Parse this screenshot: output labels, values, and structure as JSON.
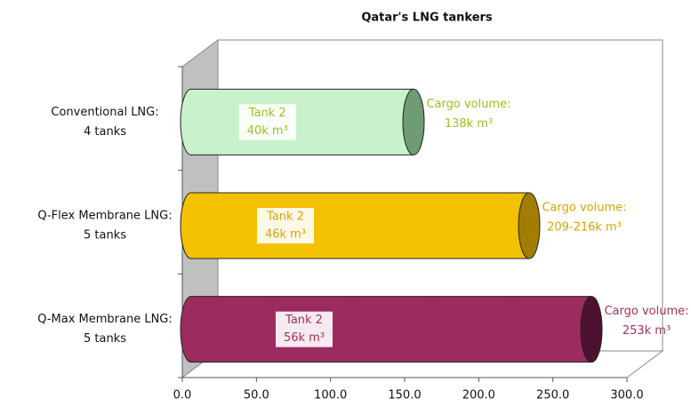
{
  "chart_data": {
    "type": "cylinder-bar",
    "title": "Qatar's LNG tankers",
    "categories": [
      "Conventional LNG:",
      "Q-Flex Membrane LNG:",
      "Q-Max Membrane LNG:"
    ],
    "category_sublabels": [
      "4 tanks",
      "5 tanks",
      "5 tanks"
    ],
    "bars": [
      {
        "segments": [
          37.5,
          37.5,
          37.5,
          37.5
        ],
        "color": "#c9f2cc",
        "end_color": "#6f9c72",
        "label_color": "#99c21a",
        "tank_label": [
          "Tank 2",
          "40k m³"
        ],
        "total_label": [
          "Cargo volume:",
          "138k m³"
        ]
      },
      {
        "segments": [
          45.6,
          45.6,
          45.6,
          45.6,
          45.6
        ],
        "color": "#f2c200",
        "end_color": "#a37d00",
        "label_color": "#d9a400",
        "tank_label": [
          "Tank 2",
          "46k m³"
        ],
        "total_label": [
          "Cargo volume:",
          "209-216k m³"
        ]
      },
      {
        "segments": [
          54,
          54,
          54,
          54,
          54
        ],
        "color": "#9c2c60",
        "end_color": "#4c1230",
        "label_color": "#a3305c",
        "tank_label": [
          "Tank 2",
          "56k m³"
        ],
        "total_label": [
          "Cargo volume:",
          "253k m³"
        ]
      }
    ],
    "xlim": [
      0,
      300
    ],
    "xticks": [
      {
        "value": 0,
        "label": "0.0"
      },
      {
        "value": 50,
        "label": "50.0"
      },
      {
        "value": 100,
        "label": "100.0"
      },
      {
        "value": 150,
        "label": "150.0"
      },
      {
        "value": 200,
        "label": "200.0"
      },
      {
        "value": 250,
        "label": "250.0"
      },
      {
        "value": 300,
        "label": "300.0"
      }
    ]
  }
}
